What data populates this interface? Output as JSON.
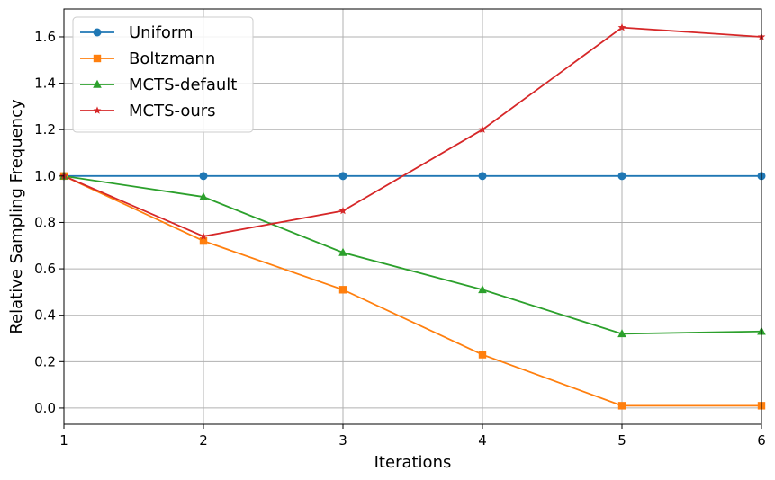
{
  "chart_data": {
    "type": "line",
    "title": "",
    "xlabel": "Iterations",
    "ylabel": "Relative Sampling Frequency",
    "x": [
      1,
      2,
      3,
      4,
      5,
      6
    ],
    "xlim": [
      1,
      6
    ],
    "ylim": [
      -0.07,
      1.72
    ],
    "xticks": [
      "1",
      "2",
      "3",
      "4",
      "5",
      "6"
    ],
    "yticks": [
      "0.0",
      "0.2",
      "0.4",
      "0.6",
      "0.8",
      "1.0",
      "1.2",
      "1.4",
      "1.6"
    ],
    "grid": true,
    "legend_position": "top-left",
    "series": [
      {
        "name": "Uniform",
        "color": "#1f77b4",
        "marker": "circle",
        "values": [
          1.0,
          1.0,
          1.0,
          1.0,
          1.0,
          1.0
        ]
      },
      {
        "name": "Boltzmann",
        "color": "#ff7f0e",
        "marker": "square",
        "values": [
          1.0,
          0.72,
          0.51,
          0.23,
          0.01,
          0.01
        ]
      },
      {
        "name": "MCTS-default",
        "color": "#2ca02c",
        "marker": "triangle",
        "values": [
          1.0,
          0.91,
          0.67,
          0.51,
          0.32,
          0.33
        ]
      },
      {
        "name": "MCTS-ours",
        "color": "#d62728",
        "marker": "star",
        "values": [
          1.0,
          0.74,
          0.85,
          1.2,
          1.64,
          1.6
        ]
      }
    ]
  }
}
